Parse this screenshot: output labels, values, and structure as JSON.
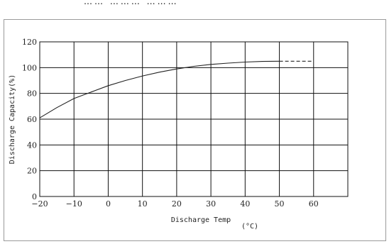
{
  "top_text_fragment": "…… ……… ………",
  "chart_data": {
    "type": "line",
    "title": "",
    "xlabel": "Discharge Temp",
    "xunit": "(°C)",
    "ylabel": "Discharge Capacity(%)",
    "xlim": [
      -20,
      70
    ],
    "ylim": [
      0,
      120
    ],
    "xticks": [
      -20,
      -10,
      0,
      10,
      20,
      30,
      40,
      50,
      60
    ],
    "xtick_labels": [
      "−20",
      "−10",
      "0",
      "10",
      "20",
      "30",
      "40",
      "50",
      "60"
    ],
    "yticks": [
      0,
      20,
      40,
      60,
      80,
      100,
      120
    ],
    "grid": true,
    "series": [
      {
        "style": "solid",
        "x": [
          -20,
          -15,
          -10,
          -5,
          0,
          5,
          10,
          15,
          20,
          25,
          30,
          35,
          40,
          45,
          50
        ],
        "y": [
          61,
          69,
          76,
          81,
          86,
          90,
          93.5,
          96.5,
          99,
          101,
          102.5,
          103.5,
          104.3,
          104.8,
          105
        ]
      },
      {
        "style": "dashed",
        "x": [
          50,
          60
        ],
        "y": [
          105,
          105
        ]
      }
    ]
  }
}
